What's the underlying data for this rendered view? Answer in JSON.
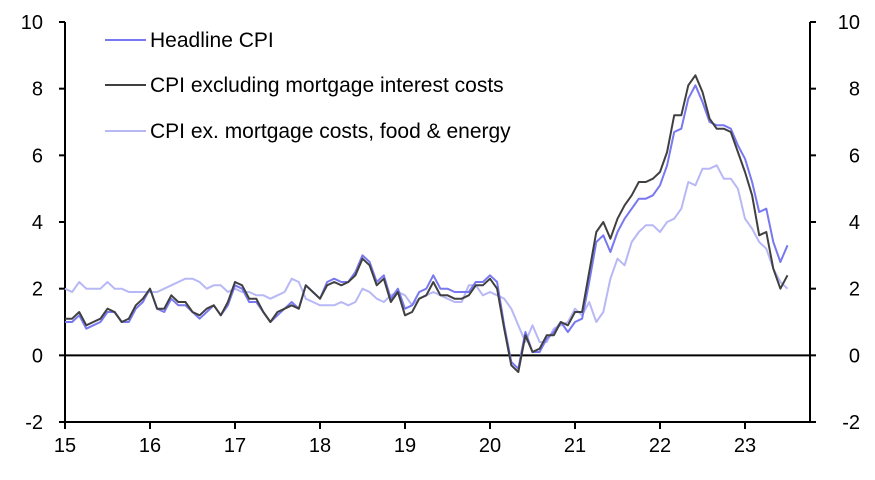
{
  "chart_data": {
    "type": "line",
    "title": "",
    "xlabel": "",
    "ylabel": "",
    "x_start": "2015-01",
    "frequency": "monthly",
    "xticks": [
      "15",
      "16",
      "17",
      "18",
      "19",
      "20",
      "21",
      "22",
      "23"
    ],
    "yticks_left": [
      "-2",
      "0",
      "2",
      "4",
      "6",
      "8",
      "10"
    ],
    "yticks_right": [
      "-2",
      "0",
      "2",
      "4",
      "6",
      "8",
      "10"
    ],
    "ylim": [
      -2,
      10
    ],
    "grid": false,
    "legend_position": "top-left",
    "series": [
      {
        "name": "Headline CPI",
        "color": "#7878f0",
        "values": [
          1.0,
          1.0,
          1.2,
          0.8,
          0.9,
          1.0,
          1.3,
          1.3,
          1.0,
          1.0,
          1.4,
          1.6,
          2.0,
          1.4,
          1.3,
          1.7,
          1.5,
          1.5,
          1.3,
          1.1,
          1.3,
          1.5,
          1.2,
          1.5,
          2.1,
          2.0,
          1.6,
          1.6,
          1.3,
          1.0,
          1.2,
          1.4,
          1.6,
          1.4,
          2.1,
          1.9,
          1.7,
          2.2,
          2.3,
          2.2,
          2.2,
          2.5,
          3.0,
          2.8,
          2.2,
          2.4,
          1.7,
          2.0,
          1.4,
          1.5,
          1.9,
          2.0,
          2.4,
          2.0,
          2.0,
          1.9,
          1.9,
          1.9,
          2.2,
          2.2,
          2.4,
          2.2,
          0.9,
          -0.2,
          -0.4,
          0.7,
          0.1,
          0.1,
          0.5,
          0.7,
          1.0,
          0.7,
          1.0,
          1.1,
          2.2,
          3.4,
          3.6,
          3.1,
          3.7,
          4.1,
          4.4,
          4.7,
          4.7,
          4.8,
          5.1,
          5.7,
          6.7,
          6.8,
          7.7,
          8.1,
          7.6,
          7.0,
          6.9,
          6.9,
          6.8,
          6.3,
          5.9,
          5.2,
          4.3,
          4.4,
          3.4,
          2.8,
          3.3
        ]
      },
      {
        "name": "CPI excluding mortgage interest costs",
        "color": "#404040",
        "values": [
          1.1,
          1.1,
          1.3,
          0.9,
          1.0,
          1.1,
          1.4,
          1.3,
          1.0,
          1.1,
          1.5,
          1.7,
          2.0,
          1.4,
          1.4,
          1.8,
          1.6,
          1.6,
          1.3,
          1.2,
          1.4,
          1.5,
          1.2,
          1.6,
          2.2,
          2.1,
          1.7,
          1.7,
          1.3,
          1.0,
          1.3,
          1.4,
          1.5,
          1.4,
          2.1,
          1.9,
          1.7,
          2.1,
          2.2,
          2.1,
          2.2,
          2.4,
          2.9,
          2.7,
          2.1,
          2.3,
          1.6,
          1.9,
          1.2,
          1.3,
          1.7,
          1.8,
          2.2,
          1.8,
          1.8,
          1.7,
          1.7,
          1.8,
          2.1,
          2.1,
          2.3,
          2.0,
          0.8,
          -0.3,
          -0.5,
          0.6,
          0.1,
          0.2,
          0.6,
          0.6,
          1.0,
          0.9,
          1.3,
          1.3,
          2.5,
          3.7,
          4.0,
          3.5,
          4.1,
          4.5,
          4.8,
          5.2,
          5.2,
          5.3,
          5.5,
          6.1,
          7.2,
          7.2,
          8.1,
          8.4,
          7.9,
          7.1,
          6.8,
          6.8,
          6.7,
          6.1,
          5.5,
          4.8,
          3.6,
          3.7,
          2.6,
          2.0,
          2.4
        ]
      },
      {
        "name": "CPI ex. mortgage costs, food & energy",
        "color": "#b8b8f6",
        "values": [
          2.0,
          1.9,
          2.2,
          2.0,
          2.0,
          2.0,
          2.2,
          2.0,
          2.0,
          1.9,
          1.9,
          1.9,
          1.9,
          1.9,
          2.0,
          2.1,
          2.2,
          2.3,
          2.3,
          2.2,
          2.0,
          2.1,
          2.1,
          1.9,
          2.0,
          1.9,
          1.9,
          1.8,
          1.8,
          1.7,
          1.8,
          1.9,
          2.3,
          2.2,
          1.7,
          1.6,
          1.5,
          1.5,
          1.5,
          1.6,
          1.5,
          1.6,
          2.0,
          1.9,
          1.7,
          1.6,
          1.8,
          1.9,
          1.8,
          1.5,
          1.7,
          1.8,
          1.9,
          1.8,
          1.7,
          1.6,
          1.6,
          2.1,
          2.1,
          1.8,
          1.9,
          1.8,
          1.7,
          1.4,
          0.9,
          0.4,
          0.9,
          0.4,
          0.4,
          0.8,
          0.9,
          1.0,
          1.4,
          1.2,
          1.6,
          1.0,
          1.3,
          2.3,
          2.9,
          2.7,
          3.4,
          3.7,
          3.9,
          3.9,
          3.7,
          4.0,
          4.1,
          4.4,
          5.2,
          5.1,
          5.6,
          5.6,
          5.7,
          5.3,
          5.3,
          5.0,
          4.1,
          3.8,
          3.4,
          3.2,
          2.6,
          2.2,
          2.0
        ]
      }
    ]
  }
}
